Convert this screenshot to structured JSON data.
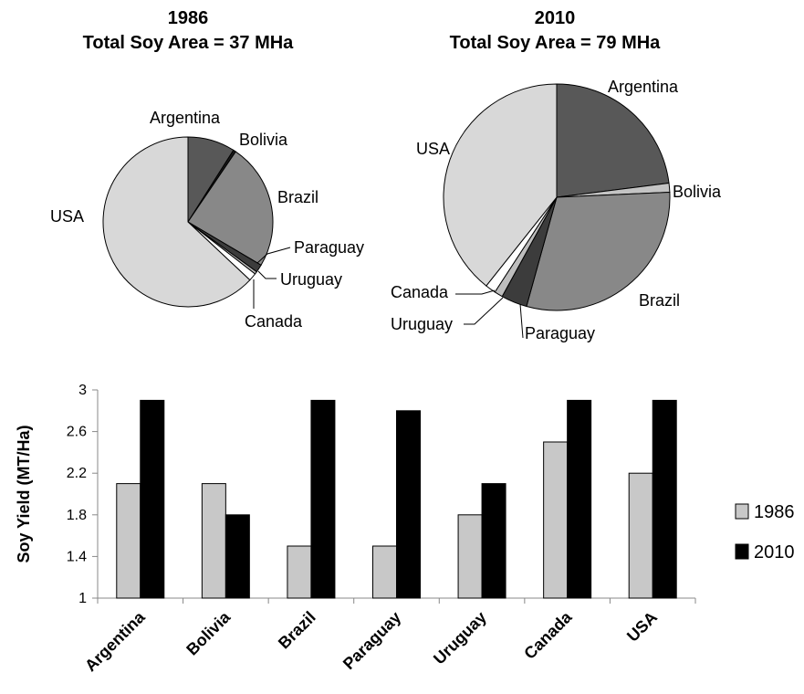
{
  "chart_data": [
    {
      "type": "pie",
      "title": "1986",
      "subtitle": "Total Soy Area = 37 MHa",
      "slices": [
        {
          "label": "Argentina",
          "value": 9,
          "color": "#585858"
        },
        {
          "label": "Bolivia",
          "value": 0.5,
          "color": "#1a1a1a"
        },
        {
          "label": "Brazil",
          "value": 24,
          "color": "#888888"
        },
        {
          "label": "Paraguay",
          "value": 1.5,
          "color": "#3c3c3c"
        },
        {
          "label": "Uruguay",
          "value": 0.5,
          "color": "#bdbdbd"
        },
        {
          "label": "Canada",
          "value": 1.5,
          "color": "#ffffff"
        },
        {
          "label": "USA",
          "value": 63,
          "color": "#d8d8d8"
        }
      ]
    },
    {
      "type": "pie",
      "title": "2010",
      "subtitle": "Total Soy Area = 79 MHa",
      "slices": [
        {
          "label": "Argentina",
          "value": 23,
          "color": "#585858"
        },
        {
          "label": "Bolivia",
          "value": 1.3,
          "color": "#c4c4c4"
        },
        {
          "label": "Brazil",
          "value": 30,
          "color": "#888888"
        },
        {
          "label": "Paraguay",
          "value": 3.7,
          "color": "#3c3c3c"
        },
        {
          "label": "Uruguay",
          "value": 1.2,
          "color": "#bdbdbd"
        },
        {
          "label": "Canada",
          "value": 1.5,
          "color": "#ffffff"
        },
        {
          "label": "USA",
          "value": 39.3,
          "color": "#d8d8d8"
        }
      ]
    },
    {
      "type": "bar",
      "categories": [
        "Argentina",
        "Bolivia",
        "Brazil",
        "Paraguay",
        "Uruguay",
        "Canada",
        "USA"
      ],
      "series": [
        {
          "name": "1986",
          "values": [
            2.1,
            2.1,
            1.5,
            1.5,
            1.8,
            2.5,
            2.2
          ],
          "color": "#c8c8c8"
        },
        {
          "name": "2010",
          "values": [
            2.9,
            1.8,
            2.9,
            2.8,
            2.1,
            2.9,
            2.9
          ],
          "color": "#000000"
        }
      ],
      "ylabel": "Soy Yield (MT/Ha)",
      "ylim": [
        1,
        3
      ],
      "yticks": [
        "1",
        "1.4",
        "1.8",
        "2.2",
        "2.6",
        "3"
      ],
      "grid": false,
      "legend": "right"
    }
  ]
}
